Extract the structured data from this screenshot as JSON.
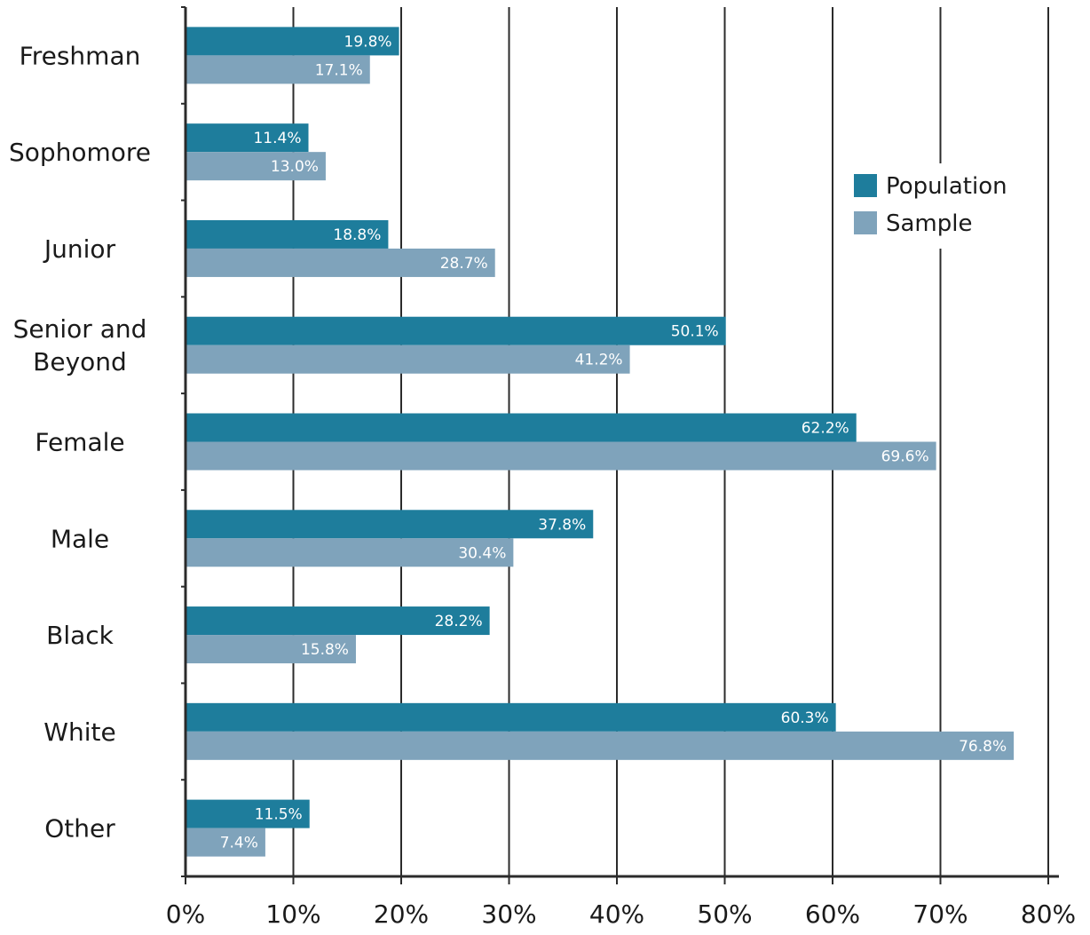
{
  "chart_data": {
    "type": "bar",
    "orientation": "horizontal",
    "categories": [
      "Freshman",
      "Sophomore",
      "Junior",
      "Senior and Beyond",
      "Female",
      "Male",
      "Black",
      "White",
      "Other"
    ],
    "series": [
      {
        "name": "Population",
        "color": "#1e7d9c",
        "values": [
          19.8,
          11.4,
          18.8,
          50.1,
          62.2,
          37.8,
          28.2,
          60.3,
          11.5
        ],
        "labels": [
          "19.8%",
          "11.4%",
          "18.8%",
          "50.1%",
          "62.2%",
          "37.8%",
          "28.2%",
          "60.3%",
          "11.5%"
        ]
      },
      {
        "name": "Sample",
        "color": "#7fa3bb",
        "values": [
          17.1,
          13.0,
          28.7,
          41.2,
          69.6,
          30.4,
          15.8,
          76.8,
          7.4
        ],
        "labels": [
          "17.1%",
          "13.0%",
          "28.7%",
          "41.2%",
          "69.6%",
          "30.4%",
          "15.8%",
          "76.8%",
          "7.4%"
        ]
      }
    ],
    "xlim": [
      0,
      80
    ],
    "xticks": [
      0,
      10,
      20,
      30,
      40,
      50,
      60,
      70,
      80
    ],
    "xtick_labels": [
      "0%",
      "10%",
      "20%",
      "30%",
      "40%",
      "50%",
      "60%",
      "70%",
      "80%"
    ],
    "grid": true,
    "legend_position": "top-right",
    "title": "",
    "xlabel": "",
    "ylabel": ""
  }
}
